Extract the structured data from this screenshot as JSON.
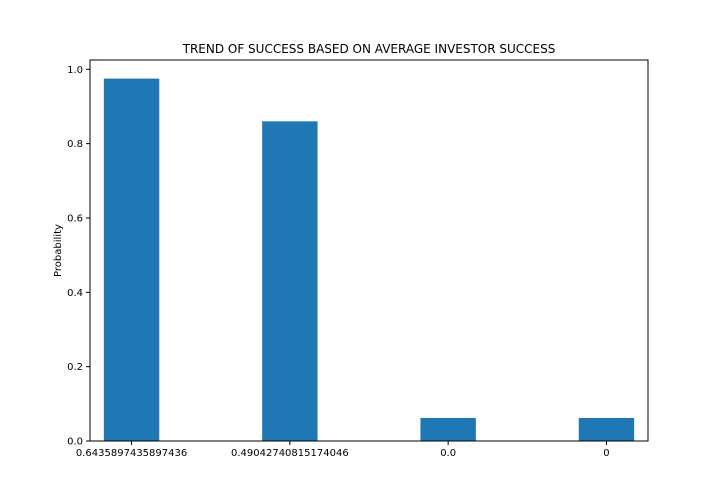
{
  "chart_data": {
    "type": "bar",
    "title": "TREND OF SUCCESS BASED ON AVERAGE INVESTOR SUCCESS",
    "xlabel": "",
    "ylabel": "Probability",
    "categories": [
      "0.6435897435897436",
      "0.49042740815174046",
      "0.0",
      "0"
    ],
    "values": [
      0.975,
      0.86,
      0.062,
      0.062
    ],
    "ylim": [
      0,
      1.025
    ],
    "yticks": [
      0.0,
      0.2,
      0.4,
      0.6,
      0.8,
      1.0
    ],
    "ytick_labels": [
      "0.0",
      "0.2",
      "0.4",
      "0.6",
      "0.8",
      "1.0"
    ],
    "bar_color": "#1f77b4",
    "grid": false,
    "legend": "none"
  }
}
